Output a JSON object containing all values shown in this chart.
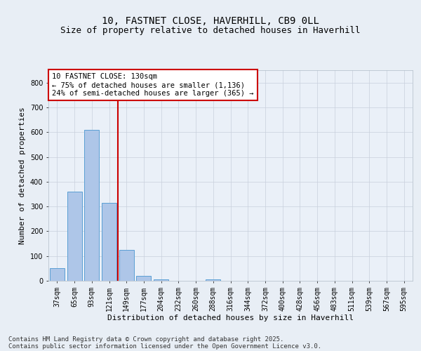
{
  "title1": "10, FASTNET CLOSE, HAVERHILL, CB9 0LL",
  "title2": "Size of property relative to detached houses in Haverhill",
  "xlabel": "Distribution of detached houses by size in Haverhill",
  "ylabel": "Number of detached properties",
  "categories": [
    "37sqm",
    "65sqm",
    "93sqm",
    "121sqm",
    "149sqm",
    "177sqm",
    "204sqm",
    "232sqm",
    "260sqm",
    "288sqm",
    "316sqm",
    "344sqm",
    "372sqm",
    "400sqm",
    "428sqm",
    "456sqm",
    "483sqm",
    "511sqm",
    "539sqm",
    "567sqm",
    "595sqm"
  ],
  "values": [
    50,
    360,
    610,
    315,
    125,
    20,
    5,
    0,
    0,
    5,
    0,
    0,
    0,
    0,
    0,
    0,
    0,
    0,
    0,
    0,
    0
  ],
  "bar_color": "#aec6e8",
  "bar_edge_color": "#5a9fd4",
  "vline_x": 3.5,
  "vline_color": "#cc0000",
  "annotation_line1": "10 FASTNET CLOSE: 130sqm",
  "annotation_line2": "← 75% of detached houses are smaller (1,136)",
  "annotation_line3": "24% of semi-detached houses are larger (365) →",
  "annotation_box_color": "#ffffff",
  "annotation_box_edge": "#cc0000",
  "ylim": [
    0,
    850
  ],
  "yticks": [
    0,
    100,
    200,
    300,
    400,
    500,
    600,
    700,
    800
  ],
  "footer1": "Contains HM Land Registry data © Crown copyright and database right 2025.",
  "footer2": "Contains public sector information licensed under the Open Government Licence v3.0.",
  "bg_color": "#e8eef5",
  "plot_bg_color": "#eaf0f8",
  "title1_fontsize": 10,
  "title2_fontsize": 9,
  "xlabel_fontsize": 8,
  "ylabel_fontsize": 8,
  "annot_fontsize": 7.5,
  "tick_fontsize": 7,
  "footer_fontsize": 6.5
}
